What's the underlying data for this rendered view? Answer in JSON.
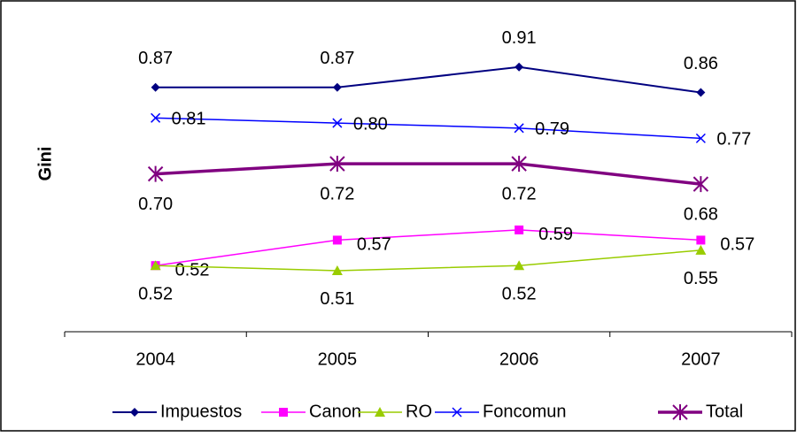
{
  "chart_data": {
    "type": "line",
    "y_label": "Gini",
    "categories": [
      "2004",
      "2005",
      "2006",
      "2007"
    ],
    "ylim": [
      0.39,
      1.0
    ],
    "series": [
      {
        "name": "Impuestos",
        "color": "#000080",
        "marker": "diamond",
        "values": [
          0.87,
          0.87,
          0.91,
          0.86
        ],
        "value_labels": [
          "0.87",
          "0.87",
          "0.91",
          "0.86"
        ]
      },
      {
        "name": "Canon",
        "color": "#ff00ff",
        "marker": "square",
        "values": [
          0.52,
          0.57,
          0.59,
          0.57
        ],
        "value_labels": [
          "0.52",
          "0.57",
          "0.59",
          "0.57"
        ]
      },
      {
        "name": "RO",
        "color": "#99cc00",
        "marker": "triangle",
        "values": [
          0.52,
          0.51,
          0.52,
          0.55
        ],
        "value_labels": [
          "0.52",
          "0.51",
          "0.52",
          "0.55"
        ]
      },
      {
        "name": "Foncomun",
        "color": "#0000ff",
        "marker": "x",
        "values": [
          0.81,
          0.8,
          0.79,
          0.77
        ],
        "value_labels": [
          "0.81",
          "0.80",
          "0.79",
          "0.77"
        ]
      },
      {
        "name": "Total",
        "color": "#800080",
        "marker": "asterisk",
        "values": [
          0.7,
          0.72,
          0.72,
          0.68
        ],
        "value_labels": [
          "0.70",
          "0.72",
          "0.72",
          "0.68"
        ]
      }
    ]
  }
}
